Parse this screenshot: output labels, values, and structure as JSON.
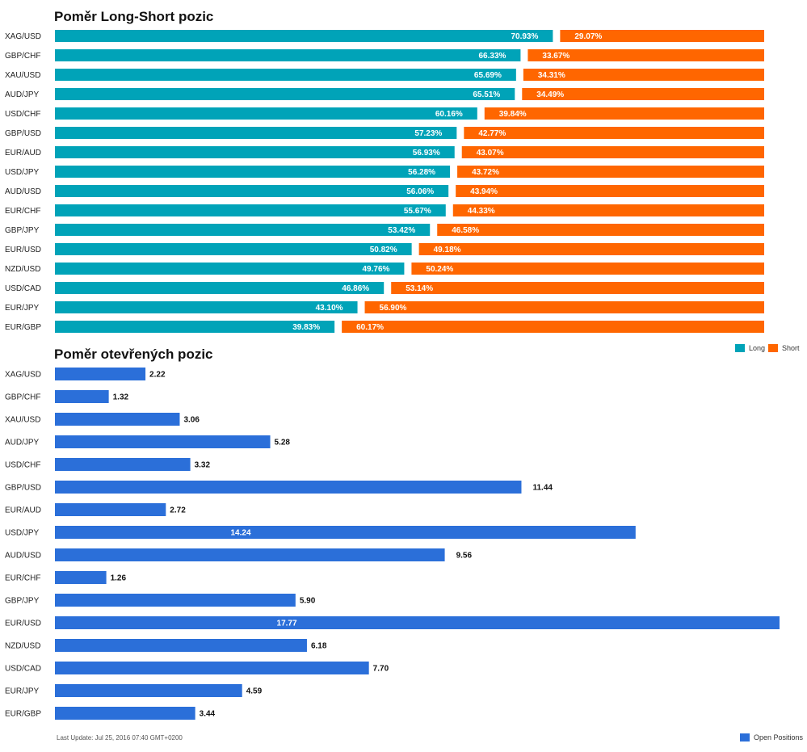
{
  "colors": {
    "long": "#00a3b8",
    "short": "#ff6600",
    "open": "#2b6fd9"
  },
  "chart_data": [
    {
      "type": "bar",
      "title": "Poměr Long-Short pozic",
      "orientation": "horizontal",
      "stacked": true,
      "categories": [
        "XAG/USD",
        "GBP/CHF",
        "XAU/USD",
        "AUD/JPY",
        "USD/CHF",
        "GBP/USD",
        "EUR/AUD",
        "USD/JPY",
        "AUD/USD",
        "EUR/CHF",
        "GBP/JPY",
        "EUR/USD",
        "NZD/USD",
        "USD/CAD",
        "EUR/JPY",
        "EUR/GBP"
      ],
      "series": [
        {
          "name": "Long",
          "values": [
            70.93,
            66.33,
            65.69,
            65.51,
            60.16,
            57.23,
            56.93,
            56.28,
            56.06,
            55.67,
            53.42,
            50.82,
            49.76,
            46.86,
            43.1,
            39.83
          ],
          "labels": [
            "70.93%",
            "66.33%",
            "65.69%",
            "65.51%",
            "60.16%",
            "57.23%",
            "56.93%",
            "56.28%",
            "56.06%",
            "55.67%",
            "53.42%",
            "50.82%",
            "49.76%",
            "46.86%",
            "43.10%",
            "39.83%"
          ]
        },
        {
          "name": "Short",
          "values": [
            29.07,
            33.67,
            34.31,
            34.49,
            39.84,
            42.77,
            43.07,
            43.72,
            43.94,
            44.33,
            46.58,
            49.18,
            50.24,
            53.14,
            56.9,
            60.17
          ],
          "labels": [
            "29.07%",
            "33.67%",
            "34.31%",
            "34.49%",
            "39.84%",
            "42.77%",
            "43.07%",
            "43.72%",
            "43.94%",
            "44.33%",
            "46.58%",
            "49.18%",
            "50.24%",
            "53.14%",
            "56.90%",
            "60.17%"
          ]
        }
      ],
      "xlim": [
        0,
        100
      ],
      "legend": "bottom-right"
    },
    {
      "type": "bar",
      "title": "Poměr otevřených pozic",
      "orientation": "horizontal",
      "categories": [
        "XAG/USD",
        "GBP/CHF",
        "XAU/USD",
        "AUD/JPY",
        "USD/CHF",
        "GBP/USD",
        "EUR/AUD",
        "USD/JPY",
        "AUD/USD",
        "EUR/CHF",
        "GBP/JPY",
        "EUR/USD",
        "NZD/USD",
        "USD/CAD",
        "EUR/JPY",
        "EUR/GBP"
      ],
      "series": [
        {
          "name": "Open Positions",
          "values": [
            2.22,
            1.32,
            3.06,
            5.28,
            3.32,
            11.44,
            2.72,
            14.24,
            9.56,
            1.26,
            5.9,
            17.77,
            6.18,
            7.7,
            4.59,
            3.44
          ],
          "labels": [
            "2.22",
            "1.32",
            "3.06",
            "5.28",
            "3.32",
            "11.44",
            "2.72",
            "14.24",
            "9.56",
            "1.26",
            "5.90",
            "17.77",
            "6.18",
            "7.70",
            "4.59",
            "3.44"
          ]
        }
      ],
      "xlim": [
        0,
        17.77
      ],
      "legend": "bottom-right"
    }
  ],
  "footer": {
    "last_update": "Last Update: Jul 25, 2016 07:40 GMT+0200"
  }
}
